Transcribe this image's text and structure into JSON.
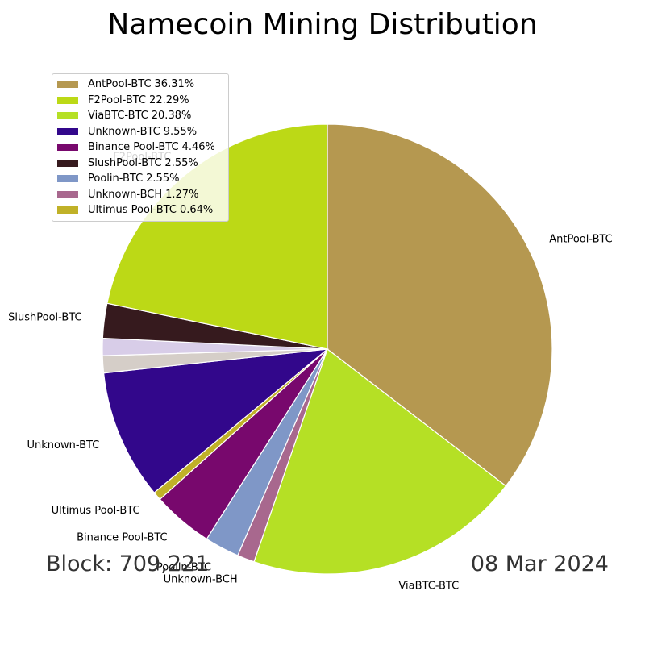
{
  "title": "Namecoin Mining Distribution",
  "footer": {
    "block": "Block: 709,221",
    "date": "08 Mar 2024"
  },
  "chart_data": {
    "type": "pie",
    "title": "Namecoin Mining Distribution",
    "slices": [
      {
        "label": "AntPool-BTC",
        "percent": 36.31,
        "color": "#b59850"
      },
      {
        "label": "ViaBTC-BTC",
        "percent": 20.38,
        "color": "#b5e025"
      },
      {
        "label": "Unknown-BCH",
        "percent": 1.27,
        "color": "#a8688e"
      },
      {
        "label": "Poolin-BTC",
        "percent": 2.55,
        "color": "#7f97c7"
      },
      {
        "label": "Binance Pool-BTC",
        "percent": 4.46,
        "color": "#78086d"
      },
      {
        "label": "Ultimus Pool-BTC",
        "percent": 0.64,
        "color": "#c0b128"
      },
      {
        "label": "Unknown-BTC",
        "percent": 9.55,
        "color": "#32078b"
      },
      {
        "label": "",
        "percent": 1.27,
        "color": "#d5cec8"
      },
      {
        "label": "",
        "percent": 1.27,
        "color": "#d8cde8"
      },
      {
        "label": "SlushPool-BTC",
        "percent": 2.55,
        "color": "#361a1e"
      },
      {
        "label": "F2Pool-BTC",
        "percent": 22.29,
        "color": "#bcd916"
      }
    ],
    "legend": {
      "placement": "top-left",
      "items": [
        {
          "label": "AntPool-BTC",
          "pct": "36.31%",
          "color": "#b59850"
        },
        {
          "label": "F2Pool-BTC",
          "pct": "22.29%",
          "color": "#bcd916"
        },
        {
          "label": "ViaBTC-BTC",
          "pct": "20.38%",
          "color": "#b5e025"
        },
        {
          "label": "Unknown-BTC",
          "pct": "9.55%",
          "color": "#32078b"
        },
        {
          "label": "Binance Pool-BTC",
          "pct": "4.46%",
          "color": "#78086d"
        },
        {
          "label": "SlushPool-BTC",
          "pct": "2.55%",
          "color": "#361a1e"
        },
        {
          "label": "Poolin-BTC",
          "pct": "2.55%",
          "color": "#7f97c7"
        },
        {
          "label": "Unknown-BCH",
          "pct": "1.27%",
          "color": "#a8688e"
        },
        {
          "label": "Ultimus Pool-BTC",
          "pct": "0.64%",
          "color": "#c0b128"
        }
      ]
    }
  }
}
